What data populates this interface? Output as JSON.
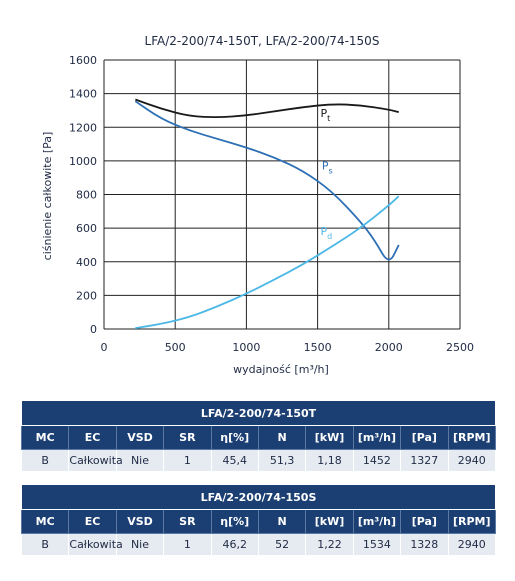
{
  "chart_data": {
    "type": "line",
    "title": "LFA/2-200/74-150T, LFA/2-200/74-150S",
    "xlabel": "wydajność [m³/h]",
    "ylabel": "ciśnienie całkowite [Pa]",
    "xlim": [
      0,
      2500
    ],
    "ylim": [
      0,
      1600
    ],
    "xticks": [
      "0",
      "500",
      "1000",
      "1500",
      "2000",
      "2500"
    ],
    "yticks": [
      "0",
      "200",
      "400",
      "600",
      "800",
      "1000",
      "1200",
      "1400",
      "1600"
    ],
    "grid": true,
    "series": [
      {
        "name": "Pt",
        "label_main": "P",
        "label_sub": "t",
        "color": "#1a1a1a",
        "x": [
          220,
          400,
          600,
          800,
          1000,
          1200,
          1400,
          1600,
          1800,
          2000,
          2070
        ],
        "y": [
          1365,
          1310,
          1265,
          1258,
          1270,
          1295,
          1320,
          1338,
          1332,
          1305,
          1290
        ]
      },
      {
        "name": "Ps",
        "label_main": "P",
        "label_sub": "s",
        "color": "#2e70b5",
        "x": [
          220,
          400,
          600,
          800,
          1000,
          1200,
          1400,
          1600,
          1800,
          1900,
          2000,
          2070
        ],
        "y": [
          1355,
          1250,
          1180,
          1130,
          1080,
          1020,
          940,
          820,
          640,
          530,
          380,
          500
        ]
      },
      {
        "name": "Pd",
        "label_main": "P",
        "label_sub": "d",
        "color": "#4cb8e6",
        "x": [
          220,
          400,
          600,
          800,
          1000,
          1200,
          1400,
          1600,
          1800,
          2000,
          2070
        ],
        "y": [
          5,
          30,
          70,
          135,
          210,
          295,
          385,
          490,
          600,
          735,
          790
        ]
      }
    ]
  },
  "tables": [
    {
      "title": "LFA/2-200/74-150T",
      "headers": [
        "MC",
        "EC",
        "VSD",
        "SR",
        "η[%]",
        "N",
        "[kW]",
        "[m³/h]",
        "[Pa]",
        "[RPM]"
      ],
      "values": [
        "B",
        "Całkowita",
        "Nie",
        "1",
        "45,4",
        "51,3",
        "1,18",
        "1452",
        "1327",
        "2940"
      ]
    },
    {
      "title": "LFA/2-200/74-150S",
      "headers": [
        "MC",
        "EC",
        "VSD",
        "SR",
        "η[%]",
        "N",
        "[kW]",
        "[m³/h]",
        "[Pa]",
        "[RPM]"
      ],
      "values": [
        "B",
        "Całkowita",
        "Nie",
        "1",
        "46,2",
        "52",
        "1,22",
        "1534",
        "1328",
        "2940"
      ]
    }
  ]
}
